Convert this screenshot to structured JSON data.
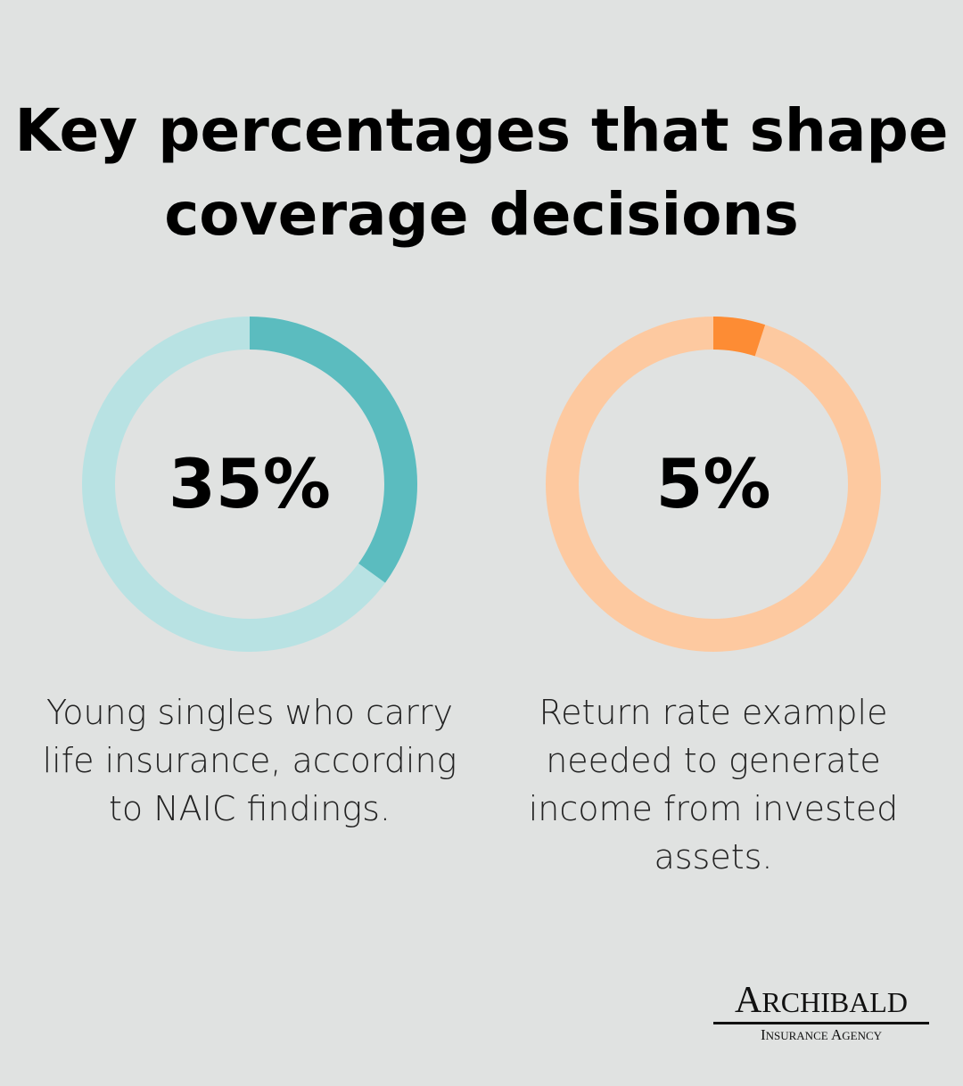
{
  "title": "Key percentages that shape coverage decisions",
  "chart_data": [
    {
      "type": "pie",
      "variant": "donut",
      "value_percent": 35,
      "label": "35%",
      "caption": "Young singles who carry life insurance, according to NAIC findings.",
      "colors": {
        "fill": "#5bbcbf",
        "track": "#b8e2e3"
      }
    },
    {
      "type": "pie",
      "variant": "donut",
      "value_percent": 5,
      "label": "5%",
      "caption": "Return rate example needed to generate income from invested assets.",
      "colors": {
        "fill": "#fd8c34",
        "track": "#fdc9a0"
      }
    }
  ],
  "logo": {
    "name": "ARCHIBALD",
    "subtitle": "INSURANCE AGENCY"
  },
  "colors": {
    "background": "#e0e2e1"
  }
}
